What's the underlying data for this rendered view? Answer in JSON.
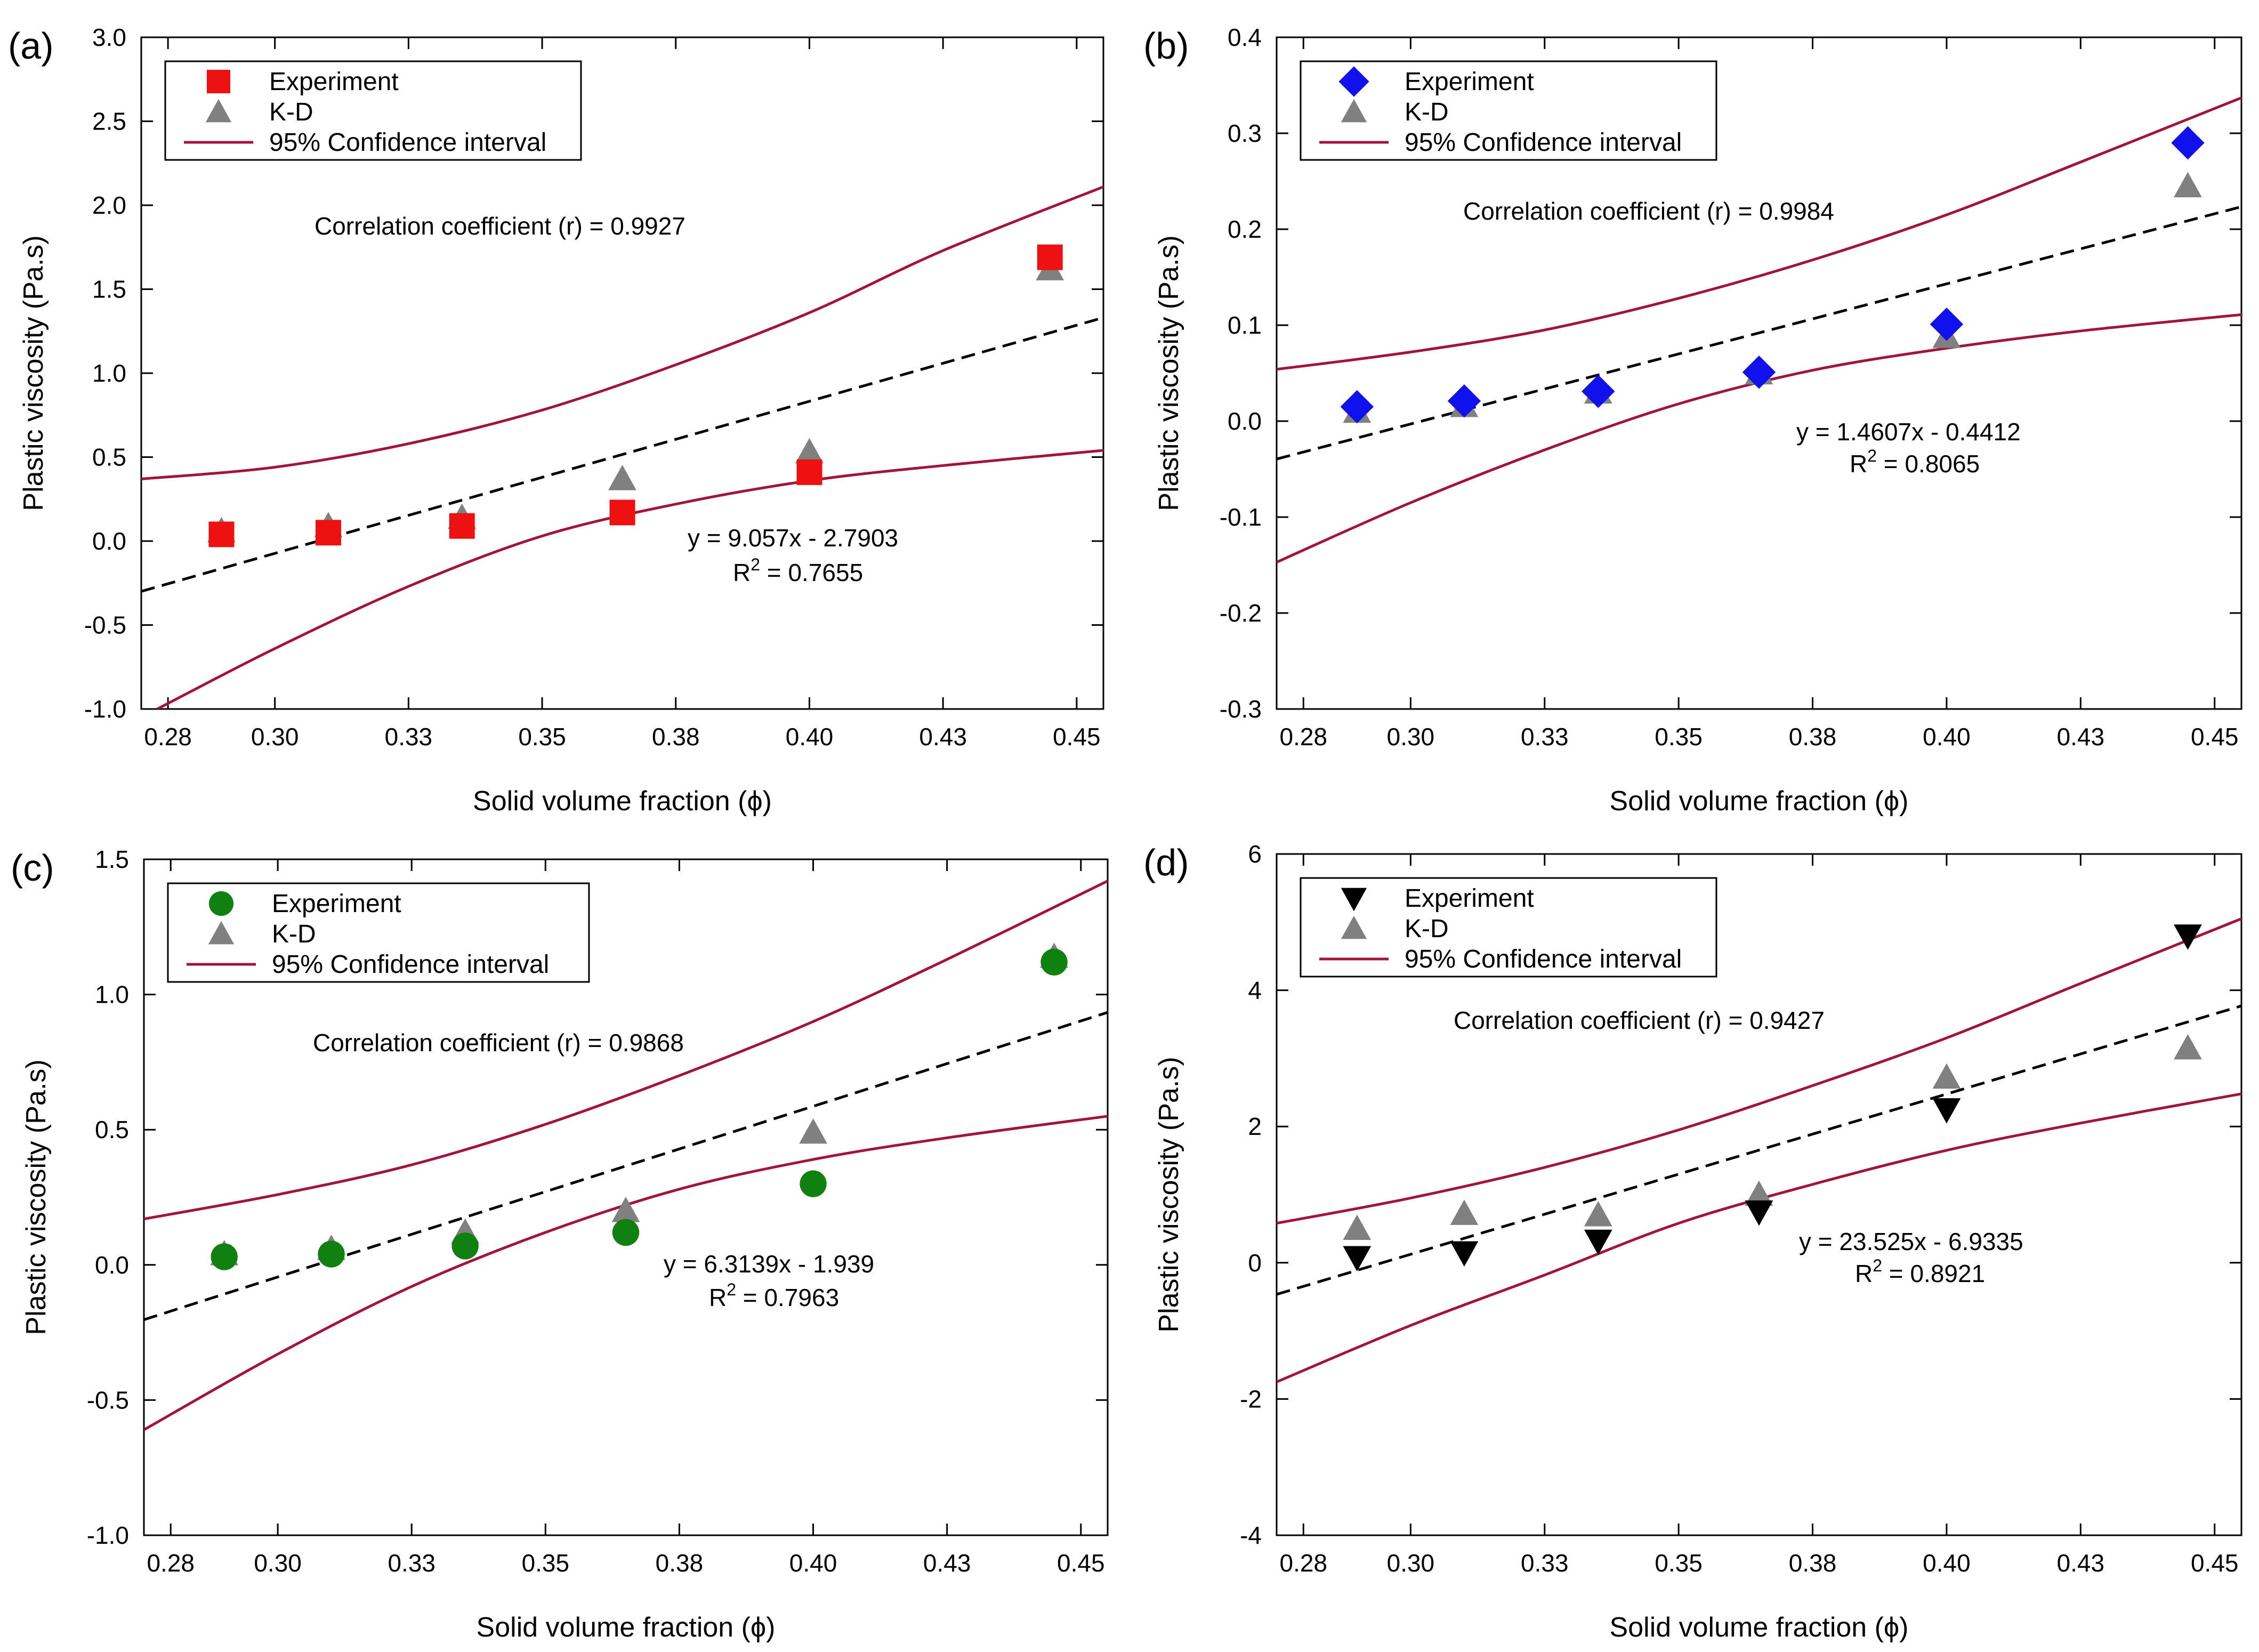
{
  "colors": {
    "ci_line": "#a2143a",
    "fit_line": "#000000",
    "kd_marker": "#808080",
    "exp_a": "#ee1111",
    "exp_b": "#1111ee",
    "exp_c": "#108010",
    "exp_d": "#000000"
  },
  "chart_data": [
    {
      "type": "scatter",
      "panel": "(a)",
      "xlabel": "Solid volume fraction (ϕ)",
      "ylabel": "Plastic viscosity (Pa.s)",
      "xlim": [
        0.275,
        0.455
      ],
      "ylim": [
        -1.0,
        3.0
      ],
      "xticks": [
        0.28,
        0.3,
        0.325,
        0.35,
        0.375,
        0.4,
        0.425,
        0.45
      ],
      "xtick_labels": [
        "0.28",
        "0.30",
        "0.33",
        "0.35",
        "0.38",
        "0.40",
        "0.43",
        "0.45"
      ],
      "yticks": [
        -1.0,
        -0.5,
        0.0,
        0.5,
        1.0,
        1.5,
        2.0,
        2.5,
        3.0
      ],
      "ytick_labels": [
        "-1.0",
        "-0.5",
        "0.0",
        "0.5",
        "1.0",
        "1.5",
        "2.0",
        "2.5",
        "3.0"
      ],
      "legend": {
        "experiment": "Experiment",
        "kd": "K-D",
        "ci": "95% Confidence interval"
      },
      "experiment_marker": "square",
      "x": [
        0.29,
        0.31,
        0.335,
        0.365,
        0.4,
        0.445
      ],
      "experiment": [
        0.04,
        0.05,
        0.09,
        0.17,
        0.41,
        1.69
      ],
      "kd": [
        0.06,
        0.09,
        0.14,
        0.37,
        0.53,
        1.62
      ],
      "fit": {
        "slope": 9.057,
        "intercept": -2.7903
      },
      "ci_upper": [
        [
          0.275,
          0.37
        ],
        [
          0.3,
          0.44
        ],
        [
          0.325,
          0.58
        ],
        [
          0.35,
          0.78
        ],
        [
          0.375,
          1.05
        ],
        [
          0.4,
          1.36
        ],
        [
          0.425,
          1.73
        ],
        [
          0.455,
          2.11
        ]
      ],
      "ci_lower": [
        [
          0.278,
          -1.0
        ],
        [
          0.3,
          -0.64
        ],
        [
          0.325,
          -0.27
        ],
        [
          0.35,
          0.03
        ],
        [
          0.375,
          0.22
        ],
        [
          0.4,
          0.36
        ],
        [
          0.425,
          0.45
        ],
        [
          0.455,
          0.54
        ]
      ],
      "correlation_label": "Correlation coefficient (r) = 0.9927",
      "equation_label": "y = 9.057x - 2.7903",
      "r2_prefix": "R",
      "r2_sup": "2",
      "r2_value": " = 0.7655"
    },
    {
      "type": "scatter",
      "panel": "(b)",
      "xlabel": "Solid volume fraction (ϕ)",
      "ylabel": "Plastic viscosity (Pa.s)",
      "xlim": [
        0.275,
        0.455
      ],
      "ylim": [
        -0.3,
        0.4
      ],
      "xticks": [
        0.28,
        0.3,
        0.325,
        0.35,
        0.375,
        0.4,
        0.425,
        0.45
      ],
      "xtick_labels": [
        "0.28",
        "0.30",
        "0.33",
        "0.35",
        "0.38",
        "0.40",
        "0.43",
        "0.45"
      ],
      "yticks": [
        -0.3,
        -0.2,
        -0.1,
        0.0,
        0.1,
        0.2,
        0.3,
        0.4
      ],
      "ytick_labels": [
        "-0.3",
        "-0.2",
        "-0.1",
        "0.0",
        "0.1",
        "0.2",
        "0.3",
        "0.4"
      ],
      "legend": {
        "experiment": "Experiment",
        "kd": "K-D",
        "ci": "95% Confidence interval"
      },
      "experiment_marker": "diamond",
      "x": [
        0.29,
        0.31,
        0.335,
        0.365,
        0.4,
        0.445
      ],
      "experiment": [
        0.015,
        0.021,
        0.031,
        0.051,
        0.101,
        0.29
      ],
      "kd": [
        0.01,
        0.016,
        0.03,
        0.05,
        0.088,
        0.245
      ],
      "fit": {
        "slope": 1.4607,
        "intercept": -0.4412
      },
      "ci_upper": [
        [
          0.275,
          0.054
        ],
        [
          0.3,
          0.072
        ],
        [
          0.325,
          0.095
        ],
        [
          0.35,
          0.128
        ],
        [
          0.375,
          0.168
        ],
        [
          0.4,
          0.215
        ],
        [
          0.425,
          0.27
        ],
        [
          0.455,
          0.337
        ]
      ],
      "ci_lower": [
        [
          0.275,
          -0.147
        ],
        [
          0.3,
          -0.085
        ],
        [
          0.325,
          -0.03
        ],
        [
          0.35,
          0.018
        ],
        [
          0.375,
          0.053
        ],
        [
          0.4,
          0.076
        ],
        [
          0.425,
          0.094
        ],
        [
          0.455,
          0.111
        ]
      ],
      "correlation_label": "Correlation coefficient (r) = 0.9984",
      "equation_label": "y = 1.4607x - 0.4412",
      "r2_prefix": "R",
      "r2_sup": "2",
      "r2_value": " = 0.8065"
    },
    {
      "type": "scatter",
      "panel": "(c)",
      "xlabel": "Solid volume fraction (ϕ)",
      "ylabel": "Plastic viscosity (Pa.s)",
      "xlim": [
        0.275,
        0.455
      ],
      "ylim": [
        -1.0,
        1.5
      ],
      "xticks": [
        0.28,
        0.3,
        0.325,
        0.35,
        0.375,
        0.4,
        0.425,
        0.45
      ],
      "xtick_labels": [
        "0.28",
        "0.30",
        "0.33",
        "0.35",
        "0.38",
        "0.40",
        "0.43",
        "0.45"
      ],
      "yticks": [
        -1.0,
        -0.5,
        0.0,
        0.5,
        1.0,
        1.5
      ],
      "ytick_labels": [
        "-1.0",
        "-0.5",
        "0.0",
        "0.5",
        "1.0",
        "1.5"
      ],
      "legend": {
        "experiment": "Experiment",
        "kd": "K-D",
        "ci": "95% Confidence interval"
      },
      "experiment_marker": "circle",
      "x": [
        0.29,
        0.31,
        0.335,
        0.365,
        0.4,
        0.445
      ],
      "experiment": [
        0.03,
        0.04,
        0.07,
        0.12,
        0.3,
        1.12
      ],
      "kd": [
        0.04,
        0.06,
        0.12,
        0.2,
        0.49,
        1.14
      ],
      "fit": {
        "slope": 6.3139,
        "intercept": -1.939
      },
      "ci_upper": [
        [
          0.275,
          0.17
        ],
        [
          0.3,
          0.26
        ],
        [
          0.325,
          0.37
        ],
        [
          0.35,
          0.52
        ],
        [
          0.375,
          0.7
        ],
        [
          0.4,
          0.9
        ],
        [
          0.425,
          1.13
        ],
        [
          0.455,
          1.42
        ]
      ],
      "ci_lower": [
        [
          0.275,
          -0.61
        ],
        [
          0.3,
          -0.33
        ],
        [
          0.325,
          -0.08
        ],
        [
          0.35,
          0.12
        ],
        [
          0.375,
          0.28
        ],
        [
          0.4,
          0.39
        ],
        [
          0.425,
          0.47
        ],
        [
          0.455,
          0.55
        ]
      ],
      "correlation_label": "Correlation coefficient (r) = 0.9868",
      "equation_label": "y = 6.3139x - 1.939",
      "r2_prefix": "R",
      "r2_sup": "2",
      "r2_value": " = 0.7963"
    },
    {
      "type": "scatter",
      "panel": "(d)",
      "xlabel": "Solid volume fraction (ϕ)",
      "ylabel": "Plastic viscosity (Pa.s)",
      "xlim": [
        0.275,
        0.455
      ],
      "ylim": [
        -4,
        6
      ],
      "xticks": [
        0.28,
        0.3,
        0.325,
        0.35,
        0.375,
        0.4,
        0.425,
        0.45
      ],
      "xtick_labels": [
        "0.28",
        "0.30",
        "0.33",
        "0.35",
        "0.38",
        "0.40",
        "0.43",
        "0.45"
      ],
      "yticks": [
        -4,
        -2,
        0,
        2,
        4,
        6
      ],
      "ytick_labels": [
        "-4",
        "-2",
        "0",
        "2",
        "4",
        "6"
      ],
      "legend": {
        "experiment": "Experiment",
        "kd": "K-D",
        "ci": "95% Confidence interval"
      },
      "experiment_marker": "triangle-down",
      "x": [
        0.29,
        0.31,
        0.335,
        0.365,
        0.4,
        0.445
      ],
      "experiment": [
        0.08,
        0.15,
        0.32,
        0.75,
        2.25,
        4.8
      ],
      "kd": [
        0.5,
        0.72,
        0.7,
        1.0,
        2.72,
        3.15
      ],
      "fit": {
        "slope": 23.525,
        "intercept": -6.9335
      },
      "ci_upper": [
        [
          0.275,
          0.58
        ],
        [
          0.3,
          0.95
        ],
        [
          0.325,
          1.4
        ],
        [
          0.35,
          1.95
        ],
        [
          0.375,
          2.6
        ],
        [
          0.4,
          3.3
        ],
        [
          0.425,
          4.1
        ],
        [
          0.455,
          5.05
        ]
      ],
      "ci_lower": [
        [
          0.275,
          -1.75
        ],
        [
          0.3,
          -0.92
        ],
        [
          0.325,
          -0.18
        ],
        [
          0.35,
          0.58
        ],
        [
          0.375,
          1.15
        ],
        [
          0.4,
          1.65
        ],
        [
          0.425,
          2.05
        ],
        [
          0.455,
          2.48
        ]
      ],
      "correlation_label": "Correlation coefficient (r) = 0.9427",
      "equation_label": "y = 23.525x - 6.9335",
      "r2_prefix": "R",
      "r2_sup": "2",
      "r2_value": " = 0.8921"
    }
  ]
}
